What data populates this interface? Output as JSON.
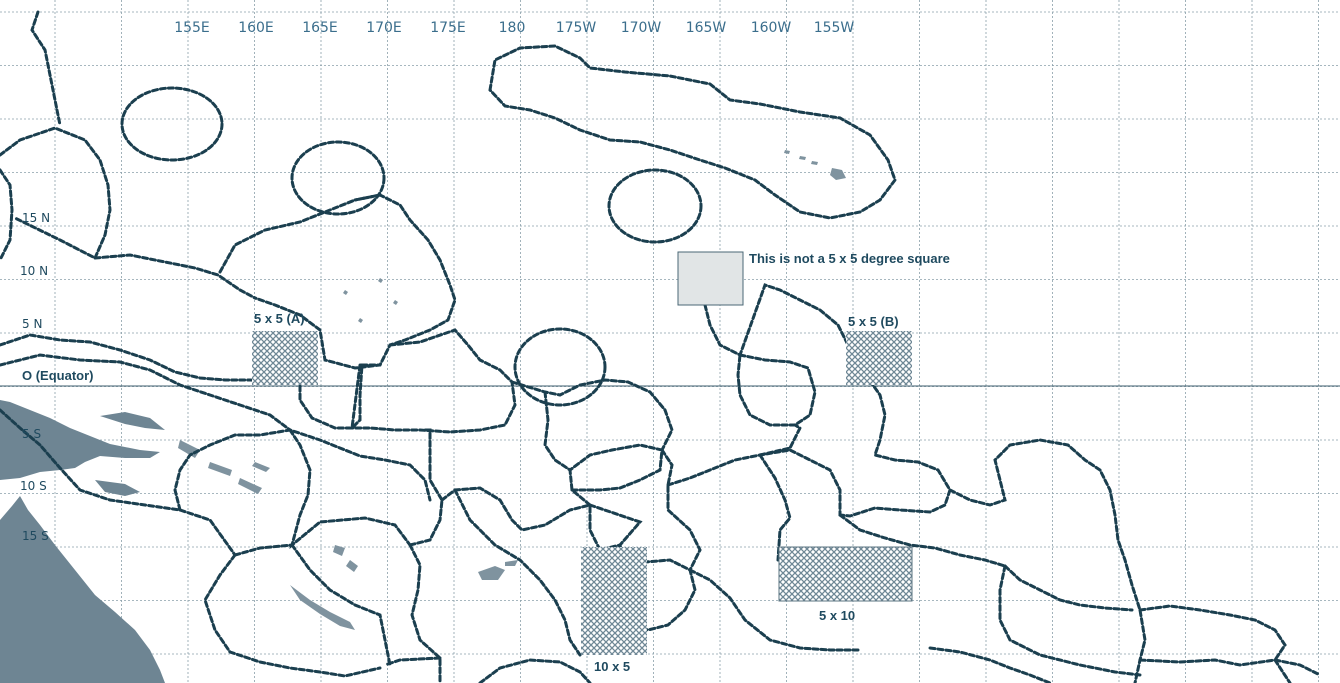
{
  "map": {
    "colors": {
      "eez_boundary": "#1b3f4f",
      "grid": "#8aa0aa",
      "land": "#6e8593",
      "hatch": "#6f8896",
      "label": "#1f4a5f",
      "lon_label": "#3b6e8c",
      "note_box_fill": "#e1e5e6"
    },
    "longitude_labels": [
      "155E",
      "160E",
      "165E",
      "170E",
      "175E",
      "180",
      "175W",
      "170W",
      "165W",
      "160W",
      "155W"
    ],
    "latitude_labels": {
      "n15": "15 N",
      "n10": "10 N",
      "n5": "5 N",
      "equator": "O  (Equator)",
      "s5": "5 S",
      "s10": "10 S",
      "s15": "15 S"
    },
    "annotations": {
      "not_square": "This is not a 5 x 5 degree square",
      "square_a": "5 x 5 (A)",
      "square_b": "5 x 5 (B)",
      "rect_5x10": "5 x 10",
      "rect_10x5": "10 x 5"
    }
  }
}
